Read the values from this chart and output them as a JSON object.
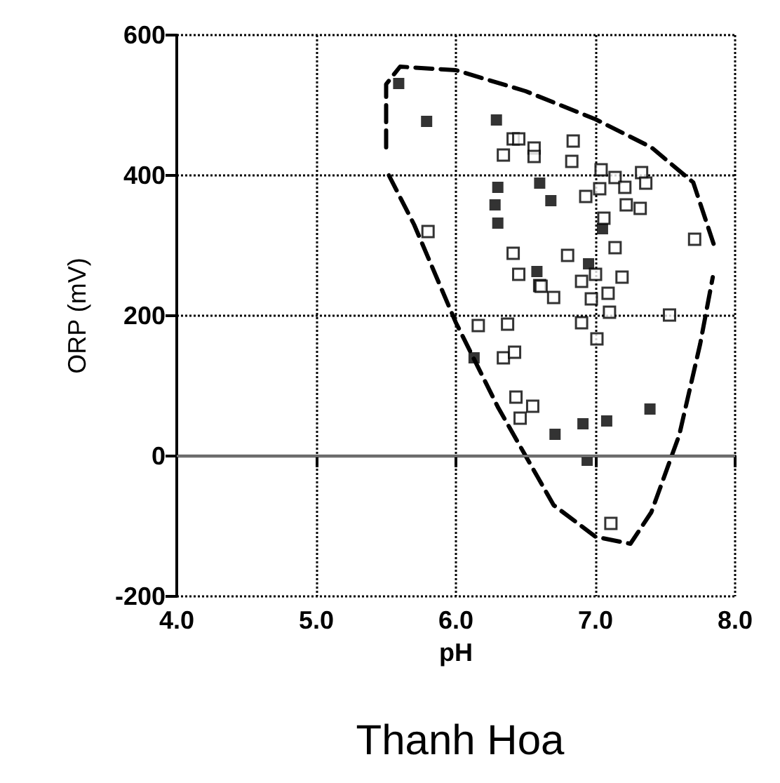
{
  "chart_data": {
    "type": "scatter",
    "title": "Thanh Hoa",
    "xlabel": "pH",
    "ylabel": "ORP (mV)",
    "xlim": [
      4,
      8
    ],
    "xticks": [
      {
        "value": 4,
        "label": "4.0"
      },
      {
        "value": 5,
        "label": "5.0"
      },
      {
        "value": 6,
        "label": "6.0"
      },
      {
        "value": 7,
        "label": "7.0"
      },
      {
        "value": 8,
        "label": "8.0"
      }
    ],
    "ylim": [
      -200,
      600
    ],
    "yticks": [
      -200,
      0,
      200,
      400,
      600
    ],
    "grid": true,
    "ref_lines": [
      {
        "axis": "y",
        "value": 0,
        "color": "#808080",
        "line_style": "solid"
      }
    ],
    "series": [
      {
        "color": "#000000",
        "marker": "square",
        "x": [
          5.59,
          5.79,
          6.29,
          6.3,
          6.28,
          6.3,
          6.6,
          6.68,
          7.05,
          6.95,
          6.58,
          6.13,
          7.39,
          7.08,
          6.91,
          6.71,
          6.94
        ],
        "values": [
          531,
          477,
          479,
          383,
          358,
          332,
          389,
          364,
          324,
          274,
          263,
          140,
          67,
          50,
          46,
          31,
          -6
        ]
      },
      {
        "color": "#000000",
        "marker": "square",
        "x": [
          6.41,
          6.45,
          6.34,
          6.56,
          6.56,
          5.8,
          6.41,
          6.45,
          6.6,
          6.84,
          6.83,
          7.04,
          7.14,
          7.21,
          7.03,
          6.93,
          7.33,
          7.36,
          7.22,
          7.32,
          7.71,
          7.06,
          7.14,
          6.8,
          7.19,
          6.9,
          7.0,
          7.09,
          6.97,
          6.61,
          6.7,
          6.16,
          6.37,
          6.34,
          6.42,
          6.43,
          6.55,
          6.46,
          6.9,
          7.1,
          7.01,
          7.53,
          7.11
        ],
        "values": [
          452,
          452,
          429,
          439,
          427,
          320,
          289,
          259,
          243,
          449,
          420,
          408,
          397,
          383,
          381,
          370,
          404,
          389,
          358,
          353,
          309,
          339,
          297,
          286,
          255,
          249,
          259,
          232,
          224,
          242,
          226,
          186,
          188,
          140,
          148,
          84,
          71,
          54,
          190,
          205,
          167,
          201,
          -96
        ]
      },
      {
        "type": "line",
        "color": "#000000",
        "line_style": "dashed",
        "marker": "none",
        "x": [
          5.5,
          5.5,
          5.6,
          6.0,
          6.5,
          7.0,
          7.4,
          7.7,
          7.85
        ],
        "values": [
          440,
          530,
          555,
          550,
          520,
          480,
          440,
          390,
          300
        ]
      },
      {
        "type": "line",
        "color": "#000000",
        "line_style": "dashed",
        "marker": "none",
        "x": [
          5.52,
          5.7,
          6.0,
          6.3,
          6.7,
          7.0,
          7.25,
          7.4,
          7.6,
          7.75,
          7.84
        ],
        "values": [
          400,
          330,
          190,
          70,
          -70,
          -115,
          -125,
          -80,
          30,
          160,
          255
        ]
      }
    ]
  }
}
